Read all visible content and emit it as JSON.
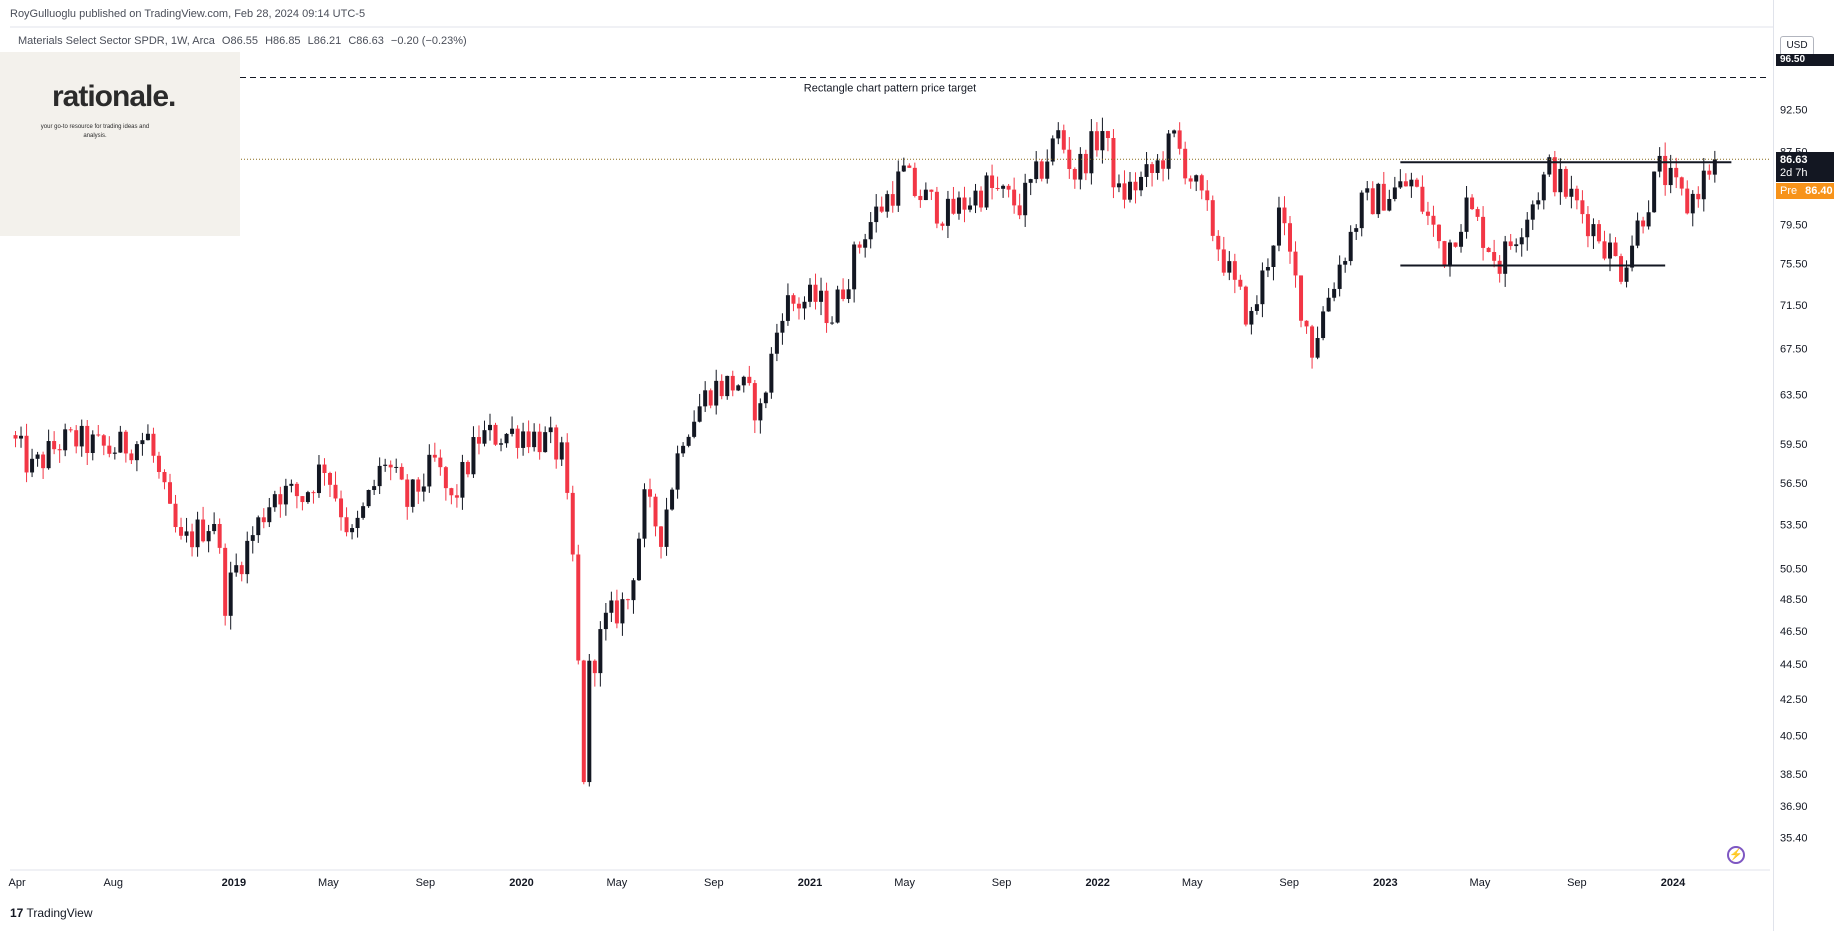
{
  "header": {
    "published": "RoyGulluoglu published on TradingView.com, Feb 28, 2024 09:14 UTC-5",
    "symbol": "Materials Select Sector SPDR, 1W, Arca",
    "open": "O86.55",
    "high": "H86.85",
    "low": "L86.21",
    "close": "C86.63",
    "change": "−0.20 (−0.23%)"
  },
  "overlay_logo": {
    "word": "rationale.",
    "tagline": "your go-to resource for trading ideas and analysis."
  },
  "currency": "USD",
  "price_tags": {
    "target": "96.50",
    "last": "86.63",
    "countdown": "2d 7h",
    "pre_label": "Pre",
    "pre_value": "86.40"
  },
  "annotation": "Rectangle chart pattern price target",
  "brand": "TradingView",
  "colors": {
    "up": "#131722",
    "down": "#f23645",
    "pre": "#f7931a",
    "accent": "#7e57c2"
  },
  "chart_data": {
    "type": "candlestick",
    "interval": "1W",
    "y_scale": "log",
    "ylim": [
      34.5,
      98.5
    ],
    "xlim": [
      "2018-03-23",
      "2024-05-03"
    ],
    "y_ticks": [
      "92.50",
      "87.50",
      "79.50",
      "75.50",
      "71.50",
      "67.50",
      "63.50",
      "59.50",
      "56.50",
      "53.50",
      "50.50",
      "48.50",
      "46.50",
      "44.50",
      "42.50",
      "40.50",
      "38.50",
      "36.90",
      "35.40"
    ],
    "x_ticks": [
      {
        "label": "Apr",
        "date": "2018-04-01",
        "bold": false
      },
      {
        "label": "Aug",
        "date": "2018-08-01",
        "bold": false
      },
      {
        "label": "2019",
        "date": "2019-01-01",
        "bold": true
      },
      {
        "label": "May",
        "date": "2019-05-01",
        "bold": false
      },
      {
        "label": "Sep",
        "date": "2019-09-01",
        "bold": false
      },
      {
        "label": "2020",
        "date": "2020-01-01",
        "bold": true
      },
      {
        "label": "May",
        "date": "2020-05-01",
        "bold": false
      },
      {
        "label": "Sep",
        "date": "2020-09-01",
        "bold": false
      },
      {
        "label": "2021",
        "date": "2021-01-01",
        "bold": true
      },
      {
        "label": "May",
        "date": "2021-05-01",
        "bold": false
      },
      {
        "label": "Sep",
        "date": "2021-09-01",
        "bold": false
      },
      {
        "label": "2022",
        "date": "2022-01-01",
        "bold": true
      },
      {
        "label": "May",
        "date": "2022-05-01",
        "bold": false
      },
      {
        "label": "Sep",
        "date": "2022-09-01",
        "bold": false
      },
      {
        "label": "2023",
        "date": "2023-01-01",
        "bold": true
      },
      {
        "label": "May",
        "date": "2023-05-01",
        "bold": false
      },
      {
        "label": "Sep",
        "date": "2023-09-01",
        "bold": false
      },
      {
        "label": "2024",
        "date": "2024-01-01",
        "bold": true
      }
    ],
    "close_path": [
      [
        "2018-03-23",
        60.2
      ],
      [
        "2018-04-20",
        57.5
      ],
      [
        "2018-05-25",
        59.6
      ],
      [
        "2018-06-15",
        59.8
      ],
      [
        "2018-07-27",
        59.0
      ],
      [
        "2018-09-14",
        60.0
      ],
      [
        "2018-10-12",
        54.0
      ],
      [
        "2018-10-26",
        52.0
      ],
      [
        "2018-12-07",
        54.0
      ],
      [
        "2018-12-21",
        48.5
      ],
      [
        "2019-01-04",
        50.5
      ],
      [
        "2019-02-22",
        56.0
      ],
      [
        "2019-03-29",
        55.5
      ],
      [
        "2019-04-26",
        58.0
      ],
      [
        "2019-05-31",
        52.5
      ],
      [
        "2019-07-12",
        58.3
      ],
      [
        "2019-08-09",
        55.0
      ],
      [
        "2019-09-13",
        58.0
      ],
      [
        "2019-10-04",
        55.0
      ],
      [
        "2019-11-08",
        60.0
      ],
      [
        "2020-01-03",
        60.5
      ],
      [
        "2020-02-07",
        59.5
      ],
      [
        "2020-02-21",
        58.5
      ],
      [
        "2020-03-06",
        51.0
      ],
      [
        "2020-03-20",
        38.5
      ],
      [
        "2020-03-27",
        44.0
      ],
      [
        "2020-04-17",
        47.0
      ],
      [
        "2020-05-15",
        48.5
      ],
      [
        "2020-06-05",
        55.0
      ],
      [
        "2020-06-26",
        53.0
      ],
      [
        "2020-07-24",
        60.5
      ],
      [
        "2020-08-28",
        64.0
      ],
      [
        "2020-10-02",
        64.5
      ],
      [
        "2020-10-30",
        62.0
      ],
      [
        "2020-11-27",
        71.5
      ],
      [
        "2021-01-08",
        72.0
      ],
      [
        "2021-01-29",
        70.5
      ],
      [
        "2021-03-12",
        79.0
      ],
      [
        "2021-04-30",
        85.0
      ],
      [
        "2021-05-14",
        83.0
      ],
      [
        "2021-06-25",
        80.5
      ],
      [
        "2021-08-13",
        83.5
      ],
      [
        "2021-09-24",
        81.5
      ],
      [
        "2021-10-15",
        84.5
      ],
      [
        "2021-11-12",
        89.5
      ],
      [
        "2021-12-03",
        85.0
      ],
      [
        "2022-01-07",
        90.0
      ],
      [
        "2022-01-28",
        82.5
      ],
      [
        "2022-03-11",
        85.0
      ],
      [
        "2022-04-08",
        89.0
      ],
      [
        "2022-05-20",
        80.5
      ],
      [
        "2022-06-24",
        73.0
      ],
      [
        "2022-07-15",
        70.0
      ],
      [
        "2022-08-19",
        80.5
      ],
      [
        "2022-09-30",
        67.5
      ],
      [
        "2022-10-21",
        72.5
      ],
      [
        "2022-12-02",
        81.5
      ],
      [
        "2023-02-03",
        84.0
      ],
      [
        "2023-03-17",
        76.5
      ],
      [
        "2023-04-14",
        81.5
      ],
      [
        "2023-05-26",
        75.5
      ],
      [
        "2023-07-28",
        85.5
      ],
      [
        "2023-09-29",
        78.5
      ],
      [
        "2023-10-27",
        75.0
      ],
      [
        "2023-12-15",
        85.5
      ],
      [
        "2024-01-19",
        81.5
      ],
      [
        "2024-02-23",
        86.63
      ]
    ],
    "levels": [
      {
        "name": "target",
        "price": 96.5,
        "style": "dashed",
        "from": "2018-03-23",
        "to": "2024-05-03"
      },
      {
        "name": "last",
        "price": 86.63,
        "style": "dotted",
        "from": "2018-03-23",
        "to": "2024-05-03"
      },
      {
        "name": "resistance",
        "price": 86.3,
        "style": "solid",
        "from": "2023-01-20",
        "to": "2024-03-15"
      },
      {
        "name": "support",
        "price": 75.3,
        "style": "solid",
        "from": "2023-01-20",
        "to": "2023-12-22"
      }
    ]
  }
}
